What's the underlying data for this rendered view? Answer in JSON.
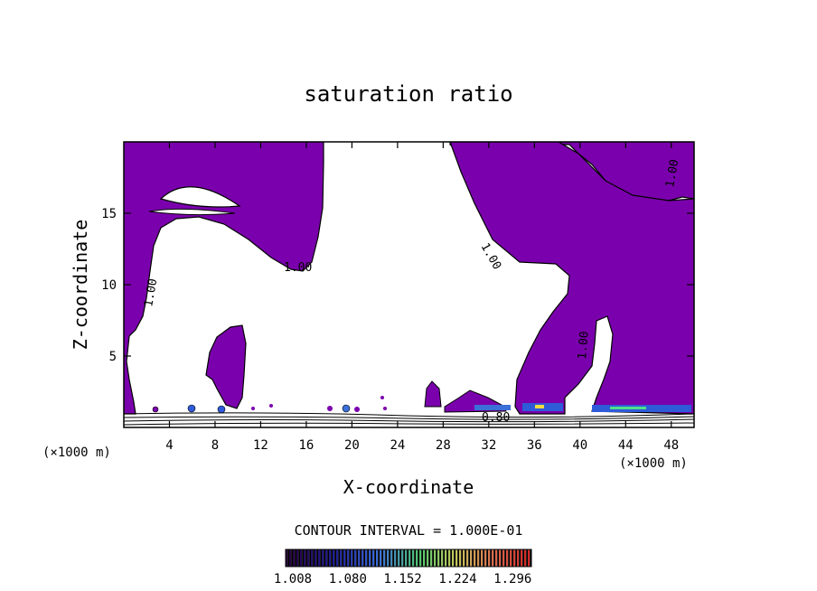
{
  "colors": {
    "fill_purple": "#7b00ad",
    "contour_line": "#000000",
    "background": "#ffffff"
  },
  "chart_data": {
    "type": "contour",
    "title": "saturation ratio",
    "xlabel": "X-coordinate",
    "ylabel": "Z-coordinate",
    "x_unit": "(×1000 m)",
    "z_unit": "(×1000 m)",
    "xlim": [
      0,
      50
    ],
    "ylim": [
      0,
      20
    ],
    "x_ticks": [
      4,
      8,
      12,
      16,
      20,
      24,
      28,
      32,
      36,
      40,
      44,
      48
    ],
    "y_ticks": [
      5,
      10,
      15
    ],
    "contour_labels": [
      "1.00",
      "1.00",
      "1.00",
      "1.00",
      "1.00",
      "0.80"
    ],
    "contour_interval_text": "CONTOUR INTERVAL = 1.000E-01",
    "colorbar": {
      "tick_labels": [
        "1.008",
        "1.080",
        "1.152",
        "1.224",
        "1.296"
      ],
      "range": [
        1.008,
        1.33
      ]
    }
  }
}
